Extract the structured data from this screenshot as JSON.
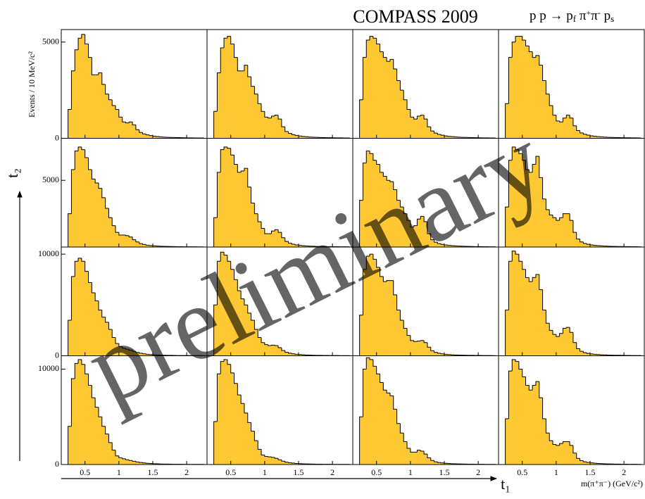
{
  "chart_data": {
    "type": "histogram",
    "title": "COMPASS 2009",
    "reaction": [
      {
        "text": "p p → p"
      },
      {
        "text": "f",
        "sub": true
      },
      {
        "text": "  π"
      },
      {
        "text": "+",
        "sup": true
      },
      {
        "text": "π"
      },
      {
        "text": "-",
        "sup": true
      },
      {
        "text": " p"
      },
      {
        "text": "s",
        "sub": true
      }
    ],
    "ylabel": "Events / 10 MeV/c²",
    "xlabel": "m(π⁺π⁻) (GeV/c²)",
    "t1_label": "t₁",
    "t2_label": "t₂",
    "watermark": "preliminary",
    "color": "#fec832",
    "xlim": [
      0.15,
      2.3
    ],
    "xticks": [
      0.5,
      1,
      1.5,
      2
    ],
    "bins": [
      0.25,
      0.3,
      0.35,
      0.4,
      0.45,
      0.5,
      0.55,
      0.6,
      0.65,
      0.7,
      0.75,
      0.8,
      0.85,
      0.9,
      0.95,
      1,
      1.05,
      1.1,
      1.15,
      1.2,
      1.25,
      1.3,
      1.35,
      1.4,
      1.45,
      1.5,
      1.55,
      1.6,
      1.65,
      1.7,
      1.75,
      1.8,
      1.85,
      1.9,
      1.95,
      2,
      2.05,
      2.1,
      2.15,
      2.2,
      2.25
    ],
    "panels": [
      {
        "ylim": [
          0,
          5650
        ],
        "yticks": [
          0,
          5000
        ],
        "values": [
          1500,
          3500,
          4600,
          5200,
          5400,
          4900,
          4200,
          3300,
          3300,
          3400,
          2800,
          2300,
          2000,
          1700,
          1500,
          1100,
          850,
          800,
          850,
          700,
          450,
          300,
          230,
          180,
          140,
          110,
          90,
          75,
          60,
          50,
          45,
          40,
          35,
          30,
          28,
          25,
          22,
          20,
          18,
          16
        ]
      },
      {
        "ylim": [
          0,
          5650
        ],
        "yticks": [],
        "values": [
          1400,
          3400,
          4700,
          5200,
          5300,
          4900,
          4200,
          3500,
          3500,
          3800,
          3200,
          2700,
          2300,
          1800,
          1400,
          1100,
          1050,
          1150,
          1200,
          1000,
          600,
          350,
          250,
          190,
          150,
          120,
          95,
          80,
          65,
          55,
          48,
          42,
          38,
          33,
          30,
          27,
          24,
          21,
          19,
          17
        ]
      },
      {
        "ylim": [
          0,
          5650
        ],
        "yticks": [],
        "values": [
          2000,
          4200,
          5100,
          5300,
          5200,
          4900,
          4500,
          4200,
          4000,
          4100,
          3600,
          3000,
          2500,
          2000,
          1500,
          1100,
          1000,
          1150,
          1200,
          1000,
          600,
          380,
          270,
          200,
          160,
          125,
          100,
          85,
          70,
          58,
          50,
          44,
          39,
          35,
          31,
          28,
          25,
          22,
          20,
          18
        ]
      },
      {
        "ylim": [
          0,
          5650
        ],
        "yticks": [],
        "values": [
          1800,
          4200,
          5000,
          5300,
          5300,
          5100,
          4800,
          4500,
          4200,
          4300,
          3800,
          3000,
          2300,
          1700,
          1200,
          900,
          850,
          1050,
          1200,
          1050,
          650,
          400,
          280,
          210,
          165,
          130,
          105,
          88,
          72,
          60,
          52,
          46,
          40,
          36,
          32,
          29,
          26,
          23,
          21,
          19
        ]
      },
      {
        "ylim": [
          0,
          8150
        ],
        "yticks": [
          5000
        ],
        "values": [
          2500,
          5800,
          7200,
          7500,
          7300,
          6700,
          5800,
          5100,
          4800,
          4400,
          3700,
          2900,
          2200,
          1600,
          1100,
          900,
          900,
          850,
          750,
          550,
          380,
          260,
          190,
          140,
          110,
          90,
          72,
          60,
          50,
          43,
          37,
          33,
          29,
          26,
          23,
          21,
          19,
          17,
          15,
          14
        ]
      },
      {
        "ylim": [
          0,
          8150
        ],
        "yticks": [],
        "values": [
          2200,
          5600,
          7300,
          7500,
          7400,
          6900,
          6200,
          5600,
          5700,
          5900,
          4500,
          3300,
          2500,
          1900,
          1400,
          1000,
          1000,
          1200,
          1300,
          1100,
          700,
          420,
          290,
          210,
          160,
          125,
          100,
          82,
          68,
          57,
          49,
          43,
          38,
          34,
          30,
          27,
          24,
          22,
          20,
          18
        ]
      },
      {
        "ylim": [
          0,
          8150
        ],
        "yticks": [],
        "values": [
          3500,
          6300,
          7200,
          7000,
          6500,
          6200,
          5600,
          5300,
          5000,
          4900,
          4300,
          3500,
          3000,
          2500,
          2000,
          1500,
          1600,
          2100,
          2300,
          1900,
          1000,
          550,
          360,
          260,
          200,
          155,
          125,
          100,
          83,
          70,
          60,
          52,
          46,
          41,
          36,
          32,
          29,
          26,
          23,
          21
        ]
      },
      {
        "ylim": [
          0,
          8150
        ],
        "yticks": [],
        "values": [
          3000,
          6500,
          7500,
          7300,
          7000,
          6500,
          5800,
          5600,
          6200,
          6800,
          5200,
          3600,
          2800,
          2400,
          2200,
          2000,
          2200,
          2500,
          2500,
          2000,
          1100,
          600,
          380,
          270,
          205,
          160,
          128,
          104,
          86,
          72,
          62,
          54,
          47,
          42,
          37,
          33,
          30,
          27,
          24,
          22
        ]
      },
      {
        "ylim": [
          0,
          10700
        ],
        "yticks": [
          0,
          10000
        ],
        "values": [
          3500,
          7800,
          9300,
          9600,
          9300,
          8300,
          7200,
          6200,
          5400,
          4500,
          3800,
          3300,
          2600,
          1800,
          1200,
          900,
          750,
          650,
          550,
          430,
          330,
          250,
          190,
          150,
          120,
          96,
          78,
          64,
          53,
          45,
          39,
          34,
          30,
          27,
          24,
          22,
          20,
          18,
          16,
          15
        ]
      },
      {
        "ylim": [
          0,
          10700
        ],
        "yticks": [],
        "values": [
          5000,
          9300,
          10200,
          9900,
          9300,
          8500,
          7500,
          6400,
          5600,
          5000,
          4200,
          3500,
          2600,
          1800,
          1300,
          1100,
          1000,
          1050,
          1000,
          800,
          520,
          350,
          250,
          190,
          150,
          120,
          96,
          79,
          65,
          55,
          47,
          41,
          36,
          32,
          28,
          25,
          23,
          21,
          19,
          17
        ]
      },
      {
        "ylim": [
          0,
          10700
        ],
        "yticks": [],
        "values": [
          4000,
          8500,
          9800,
          10000,
          9500,
          8700,
          7800,
          7300,
          7400,
          7400,
          6000,
          4500,
          3500,
          2700,
          2000,
          1500,
          1400,
          1450,
          1500,
          1300,
          850,
          500,
          340,
          250,
          190,
          150,
          120,
          98,
          81,
          68,
          58,
          50,
          44,
          39,
          34,
          31,
          28,
          25,
          22,
          20
        ]
      },
      {
        "ylim": [
          0,
          10700
        ],
        "yticks": [],
        "values": [
          4500,
          9300,
          10300,
          10000,
          9300,
          8500,
          7700,
          7300,
          7700,
          8000,
          6500,
          4500,
          3200,
          2500,
          2100,
          1900,
          2200,
          2700,
          2800,
          2300,
          1300,
          700,
          440,
          310,
          235,
          185,
          148,
          120,
          99,
          83,
          71,
          62,
          54,
          48,
          42,
          38,
          34,
          30,
          27,
          25
        ]
      },
      {
        "ylim": [
          0,
          11400
        ],
        "yticks": [
          0,
          10000
        ],
        "values": [
          4000,
          9000,
          10600,
          11000,
          10500,
          9500,
          8300,
          7000,
          6000,
          5000,
          4000,
          3200,
          2300,
          1500,
          900,
          700,
          600,
          500,
          420,
          340,
          270,
          210,
          165,
          130,
          105,
          85,
          70,
          58,
          49,
          42,
          36,
          32,
          28,
          25,
          22,
          20,
          18,
          16,
          15,
          14
        ]
      },
      {
        "ylim": [
          0,
          11400
        ],
        "yticks": [],
        "values": [
          4500,
          9500,
          10800,
          11000,
          10500,
          9600,
          8500,
          7300,
          6400,
          5400,
          4400,
          3500,
          2500,
          1600,
          1000,
          850,
          800,
          750,
          650,
          500,
          350,
          250,
          185,
          145,
          115,
          93,
          76,
          63,
          53,
          45,
          39,
          34,
          30,
          27,
          24,
          22,
          20,
          18,
          16,
          15
        ]
      },
      {
        "ylim": [
          0,
          11400
        ],
        "yticks": [],
        "values": [
          5000,
          10000,
          11200,
          11000,
          10300,
          9500,
          8600,
          7800,
          7500,
          7200,
          5800,
          4300,
          3300,
          2400,
          1700,
          1300,
          1300,
          1500,
          1400,
          1100,
          700,
          420,
          290,
          215,
          165,
          130,
          105,
          86,
          71,
          60,
          51,
          45,
          39,
          35,
          31,
          28,
          25,
          22,
          20,
          18
        ]
      },
      {
        "ylim": [
          0,
          11400
        ],
        "yticks": [],
        "values": [
          4800,
          9800,
          11000,
          10800,
          10000,
          9200,
          8300,
          7800,
          8300,
          8700,
          7000,
          4800,
          3300,
          2500,
          2100,
          2000,
          2200,
          2400,
          2400,
          2000,
          1200,
          650,
          410,
          290,
          220,
          172,
          138,
          112,
          92,
          77,
          66,
          57,
          50,
          44,
          39,
          35,
          31,
          28,
          25,
          23
        ]
      }
    ]
  }
}
